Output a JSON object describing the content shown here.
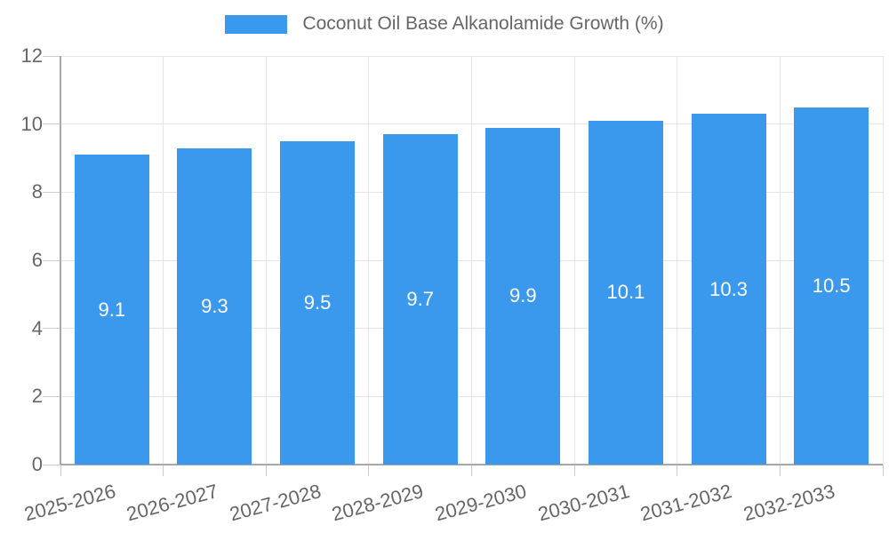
{
  "legend": {
    "label": "Coconut Oil Base Alkanolamide Growth (%)"
  },
  "colors": {
    "bar": "#3a99ec",
    "grid": "#e5e5e5",
    "axis_border": "#a8a8a8",
    "tick_mark": "#cccccc",
    "text": "#666666",
    "bar_label": "#ffffff",
    "background": "#ffffff"
  },
  "chart_data": {
    "type": "bar",
    "title": "Coconut Oil Base Alkanolamide Growth (%)",
    "categories": [
      "2025-2026",
      "2026-2027",
      "2027-2028",
      "2028-2029",
      "2029-2030",
      "2030-2031",
      "2031-2032",
      "2032-2033"
    ],
    "values": [
      9.1,
      9.3,
      9.5,
      9.7,
      9.9,
      10.1,
      10.3,
      10.5
    ],
    "value_labels": [
      "9.1",
      "9.3",
      "9.5",
      "9.7",
      "9.9",
      "10.1",
      "10.3",
      "10.5"
    ],
    "xlabel": "",
    "ylabel": "",
    "ylim": [
      0,
      12
    ],
    "yticks": [
      0,
      2,
      4,
      6,
      8,
      10,
      12
    ],
    "ytick_labels": [
      "0",
      "2",
      "4",
      "6",
      "8",
      "10",
      "12"
    ],
    "grid": true,
    "legend_position": "top",
    "x_tick_rotation_deg": -15,
    "bar_labels_inside": true
  }
}
